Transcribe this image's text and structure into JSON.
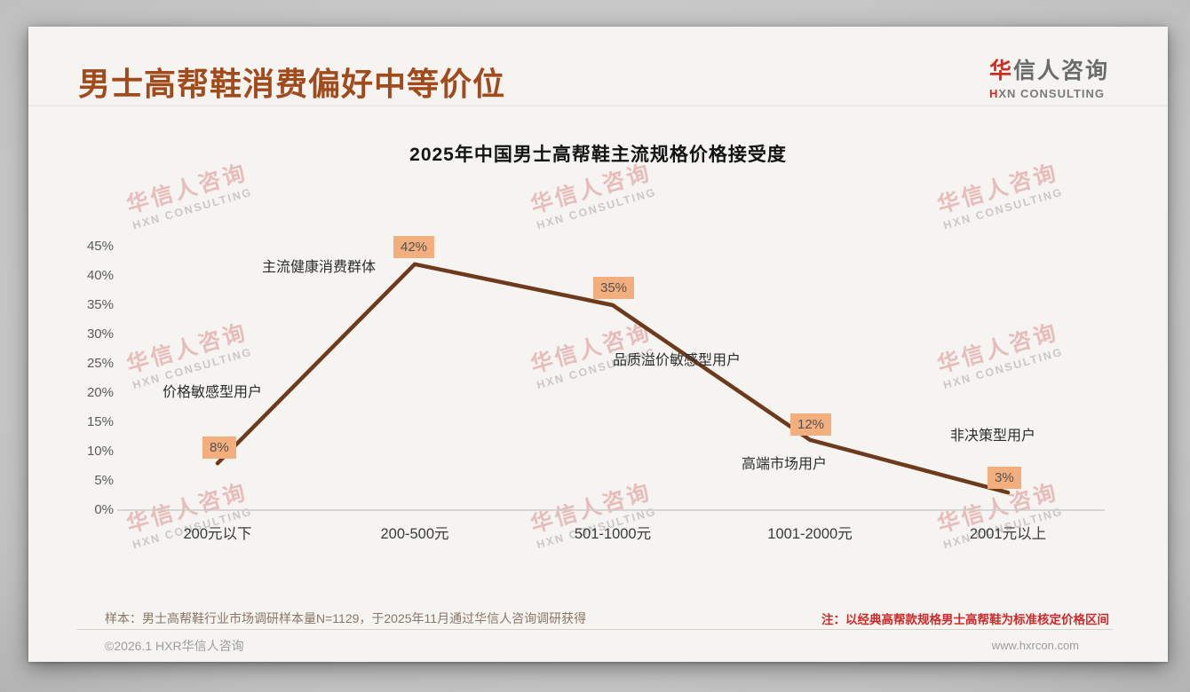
{
  "header": {
    "title": "男士高帮鞋消费偏好中等价位",
    "logo": {
      "accent_char": "华",
      "rest_chars": "信人咨询",
      "en_accent": "H",
      "en_rest": "XN CONSULTING"
    }
  },
  "watermark": {
    "line1": "华信人咨询",
    "line2": "HXN CONSULTING"
  },
  "chart_data": {
    "type": "line",
    "title": "2025年中国男士高帮鞋主流规格价格接受度",
    "categories": [
      "200元以下",
      "200-500元",
      "501-1000元",
      "1001-2000元",
      "2001元以上"
    ],
    "values": [
      8,
      42,
      35,
      12,
      3
    ],
    "data_labels": [
      "8%",
      "42%",
      "35%",
      "12%",
      "3%"
    ],
    "annotations": [
      "价格敏感型用户",
      "主流健康消费群体",
      "品质溢价敏感型用户",
      "高端市场用户",
      "非决策型用户"
    ],
    "y_ticks": [
      "45%",
      "40%",
      "35%",
      "30%",
      "25%",
      "20%",
      "15%",
      "10%",
      "5%",
      "0%"
    ],
    "ylim": [
      0,
      45
    ],
    "xlabel": "",
    "ylabel": "",
    "grid": false,
    "legend": "none",
    "line_color": "#6d3a1b",
    "label_bg": "#f3ae7d",
    "accent_title_color": "#a14a1c"
  },
  "footer": {
    "sample_note": "样本：男士高帮鞋行业市场调研样本量N=1129，于2025年11月通过华信人咨询调研获得",
    "price_note": "注：以经典高帮款规格男士高帮鞋为标准核定价格区间",
    "copyright": "©2026.1 HXR华信人咨询",
    "website": "www.hxrcon.com"
  }
}
